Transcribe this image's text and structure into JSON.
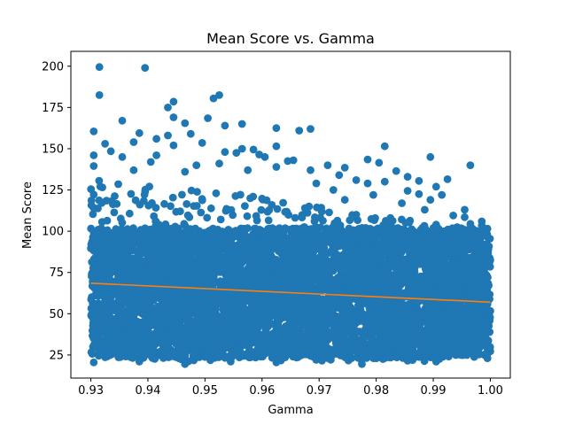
{
  "chart_data": {
    "type": "scatter",
    "title": "Mean Score vs. Gamma",
    "xlabel": "Gamma",
    "ylabel": "Mean Score",
    "xlim": [
      0.9265,
      1.0035
    ],
    "ylim": [
      11,
      209
    ],
    "xticks": [
      0.93,
      0.94,
      0.95,
      0.96,
      0.97,
      0.98,
      0.99,
      1.0
    ],
    "xtick_labels": [
      "0.93",
      "0.94",
      "0.95",
      "0.96",
      "0.97",
      "0.98",
      "0.99",
      "1.00"
    ],
    "yticks": [
      25,
      50,
      75,
      100,
      125,
      150,
      175,
      200
    ],
    "ytick_labels": [
      "25",
      "50",
      "75",
      "100",
      "125",
      "150",
      "175",
      "200"
    ],
    "grid": false,
    "colors": {
      "points": "#1f77b4",
      "trend": "#ff7f0e"
    },
    "trend_line": {
      "x": [
        0.93,
        1.0
      ],
      "y": [
        68.5,
        57.0
      ]
    },
    "outliers": [
      {
        "x": 0.9315,
        "y": 199.5
      },
      {
        "x": 0.9395,
        "y": 199.0
      },
      {
        "x": 0.9315,
        "y": 182.5
      },
      {
        "x": 0.9525,
        "y": 182.5
      },
      {
        "x": 0.9515,
        "y": 180.5
      },
      {
        "x": 0.9445,
        "y": 178.5
      },
      {
        "x": 0.9435,
        "y": 175.0
      },
      {
        "x": 0.9505,
        "y": 168.5
      },
      {
        "x": 0.9445,
        "y": 169.0
      },
      {
        "x": 0.9355,
        "y": 167.0
      },
      {
        "x": 0.9465,
        "y": 165.5
      },
      {
        "x": 0.9565,
        "y": 165.0
      },
      {
        "x": 0.9535,
        "y": 164.0
      },
      {
        "x": 0.9625,
        "y": 162.5
      },
      {
        "x": 0.9685,
        "y": 162.0
      },
      {
        "x": 0.9665,
        "y": 161.0
      },
      {
        "x": 0.9305,
        "y": 160.5
      },
      {
        "x": 0.9385,
        "y": 159.5
      },
      {
        "x": 0.9475,
        "y": 159.0
      },
      {
        "x": 0.9435,
        "y": 158.0
      },
      {
        "x": 0.9415,
        "y": 156.0
      },
      {
        "x": 0.9375,
        "y": 154.0
      },
      {
        "x": 0.9495,
        "y": 153.5
      },
      {
        "x": 0.9445,
        "y": 152.0
      },
      {
        "x": 0.9815,
        "y": 151.5
      },
      {
        "x": 0.9625,
        "y": 151.5
      },
      {
        "x": 0.9585,
        "y": 149.5
      },
      {
        "x": 0.9565,
        "y": 150.0
      },
      {
        "x": 0.9535,
        "y": 148.0
      },
      {
        "x": 0.9605,
        "y": 145.0
      },
      {
        "x": 0.9895,
        "y": 145.0
      },
      {
        "x": 0.9785,
        "y": 143.5
      },
      {
        "x": 0.9805,
        "y": 141.5
      },
      {
        "x": 0.9645,
        "y": 142.5
      },
      {
        "x": 0.9715,
        "y": 140.0
      },
      {
        "x": 0.9965,
        "y": 140.0
      },
      {
        "x": 0.9745,
        "y": 138.5
      },
      {
        "x": 0.9685,
        "y": 137.0
      },
      {
        "x": 0.9735,
        "y": 134.0
      },
      {
        "x": 0.9855,
        "y": 133.0
      },
      {
        "x": 0.9835,
        "y": 136.5
      },
      {
        "x": 0.9925,
        "y": 131.5
      },
      {
        "x": 0.9765,
        "y": 131.0
      },
      {
        "x": 0.9875,
        "y": 130.5
      },
      {
        "x": 0.9815,
        "y": 130.0
      },
      {
        "x": 0.9785,
        "y": 129.0
      },
      {
        "x": 0.9695,
        "y": 129.0
      },
      {
        "x": 0.9905,
        "y": 127.0
      },
      {
        "x": 0.9855,
        "y": 124.5
      },
      {
        "x": 0.9725,
        "y": 125.0
      },
      {
        "x": 0.9795,
        "y": 122.0
      },
      {
        "x": 0.9915,
        "y": 122.0
      },
      {
        "x": 0.9875,
        "y": 122.5
      },
      {
        "x": 0.9895,
        "y": 119.0
      },
      {
        "x": 0.9745,
        "y": 119.0
      },
      {
        "x": 0.9845,
        "y": 117.0
      },
      {
        "x": 0.9885,
        "y": 113.0
      },
      {
        "x": 0.9955,
        "y": 113.0
      },
      {
        "x": 0.9935,
        "y": 109.5
      },
      {
        "x": 0.9985,
        "y": 106.0
      },
      {
        "x": 0.9955,
        "y": 108.5
      },
      {
        "x": 0.9965,
        "y": 104.5
      },
      {
        "x": 0.9985,
        "y": 103.5
      },
      {
        "x": 0.9995,
        "y": 101.5
      },
      {
        "x": 0.9975,
        "y": 98.5
      },
      {
        "x": 0.9945,
        "y": 100.5
      },
      {
        "x": 0.9905,
        "y": 104.0
      },
      {
        "x": 0.9825,
        "y": 108.0
      },
      {
        "x": 0.9765,
        "y": 110.0
      },
      {
        "x": 0.9995,
        "y": 96.5
      },
      {
        "x": 0.9325,
        "y": 153.0
      },
      {
        "x": 0.9335,
        "y": 148.5
      },
      {
        "x": 0.9305,
        "y": 146.0
      },
      {
        "x": 0.9355,
        "y": 145.0
      },
      {
        "x": 0.9405,
        "y": 142.0
      },
      {
        "x": 0.9415,
        "y": 146.0
      },
      {
        "x": 0.9485,
        "y": 140.0
      },
      {
        "x": 0.9525,
        "y": 141.0
      },
      {
        "x": 0.9555,
        "y": 147.5
      },
      {
        "x": 0.9595,
        "y": 146.5
      },
      {
        "x": 0.9655,
        "y": 143.0
      },
      {
        "x": 0.9305,
        "y": 139.5
      },
      {
        "x": 0.9375,
        "y": 137.0
      },
      {
        "x": 0.9465,
        "y": 136.0
      },
      {
        "x": 0.9575,
        "y": 137.0
      },
      {
        "x": 0.9625,
        "y": 139.0
      },
      {
        "x": 0.9305,
        "y": 20.5
      },
      {
        "x": 0.9465,
        "y": 19.5
      },
      {
        "x": 0.9775,
        "y": 19.5
      },
      {
        "x": 0.9625,
        "y": 20.5
      },
      {
        "x": 0.9905,
        "y": 21.0
      },
      {
        "x": 0.9545,
        "y": 21.0
      },
      {
        "x": 0.9705,
        "y": 21.5
      },
      {
        "x": 0.9385,
        "y": 21.0
      },
      {
        "x": 0.9995,
        "y": 23.0
      },
      {
        "x": 0.9855,
        "y": 21.5
      }
    ],
    "dense_band": [
      {
        "x": 0.93,
        "y_min": 22,
        "y_max": 132
      },
      {
        "x": 0.935,
        "y_min": 21,
        "y_max": 130
      },
      {
        "x": 0.94,
        "y_min": 21,
        "y_max": 128
      },
      {
        "x": 0.945,
        "y_min": 21,
        "y_max": 126
      },
      {
        "x": 0.95,
        "y_min": 21,
        "y_max": 125
      },
      {
        "x": 0.955,
        "y_min": 21,
        "y_max": 123
      },
      {
        "x": 0.96,
        "y_min": 21,
        "y_max": 121
      },
      {
        "x": 0.965,
        "y_min": 21,
        "y_max": 118
      },
      {
        "x": 0.97,
        "y_min": 21,
        "y_max": 115
      },
      {
        "x": 0.975,
        "y_min": 21,
        "y_max": 112
      },
      {
        "x": 0.98,
        "y_min": 21,
        "y_max": 110
      },
      {
        "x": 0.985,
        "y_min": 21,
        "y_max": 107
      },
      {
        "x": 0.99,
        "y_min": 21,
        "y_max": 104
      },
      {
        "x": 0.995,
        "y_min": 22,
        "y_max": 103
      },
      {
        "x": 1.0,
        "y_min": 23,
        "y_max": 100
      }
    ]
  }
}
